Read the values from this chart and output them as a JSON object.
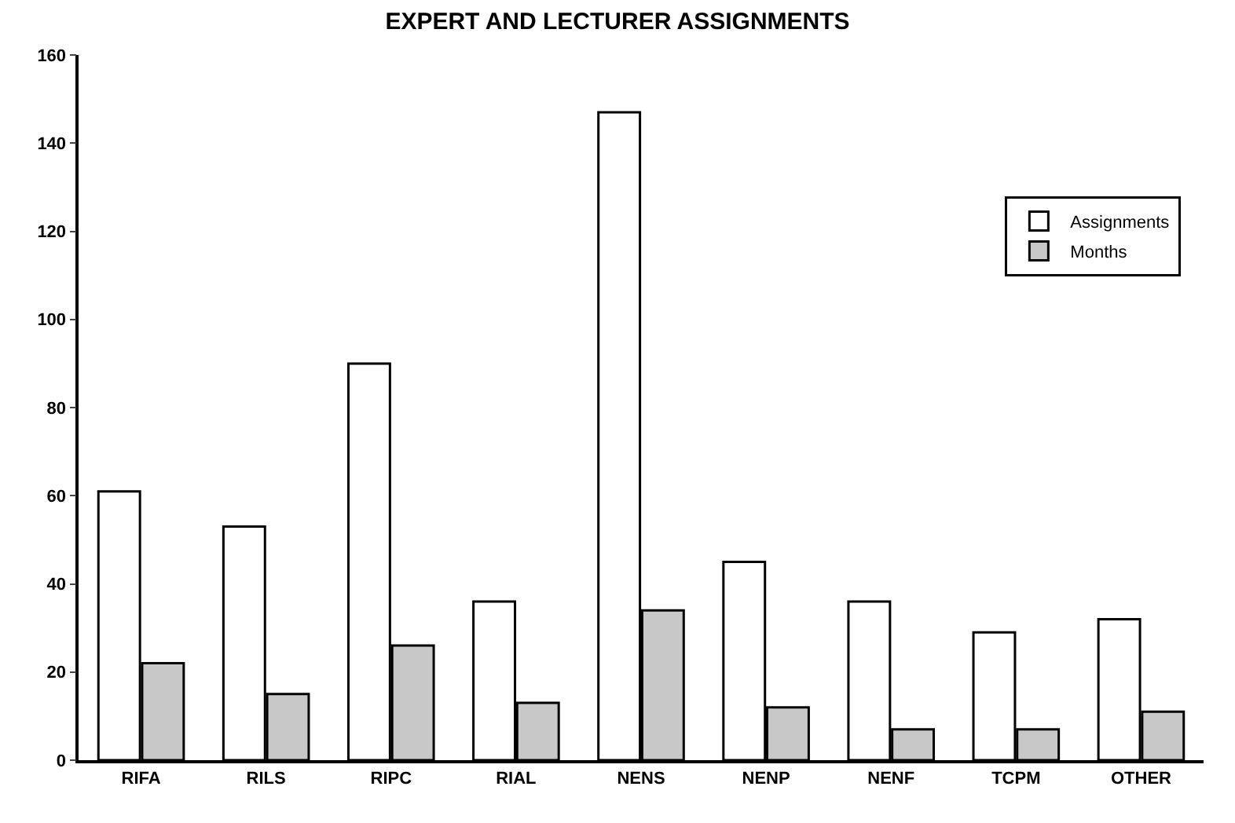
{
  "chart_data": {
    "type": "bar",
    "title": "EXPERT AND LECTURER ASSIGNMENTS",
    "categories": [
      "RIFA",
      "RILS",
      "RIPC",
      "RIAL",
      "NENS",
      "NENP",
      "NENF",
      "TCPM",
      "OTHER"
    ],
    "series": [
      {
        "name": "Assignments",
        "color": "#ffffff",
        "values": [
          61,
          53,
          90,
          36,
          147,
          45,
          36,
          29,
          32
        ]
      },
      {
        "name": "Months",
        "color": "#c8c8c8",
        "values": [
          22,
          15,
          26,
          13,
          34,
          12,
          7,
          7,
          11
        ]
      }
    ],
    "ylim": [
      0,
      160
    ],
    "yticks": [
      0,
      20,
      40,
      60,
      80,
      100,
      120,
      140,
      160
    ],
    "grid": false,
    "legend": "top right"
  }
}
